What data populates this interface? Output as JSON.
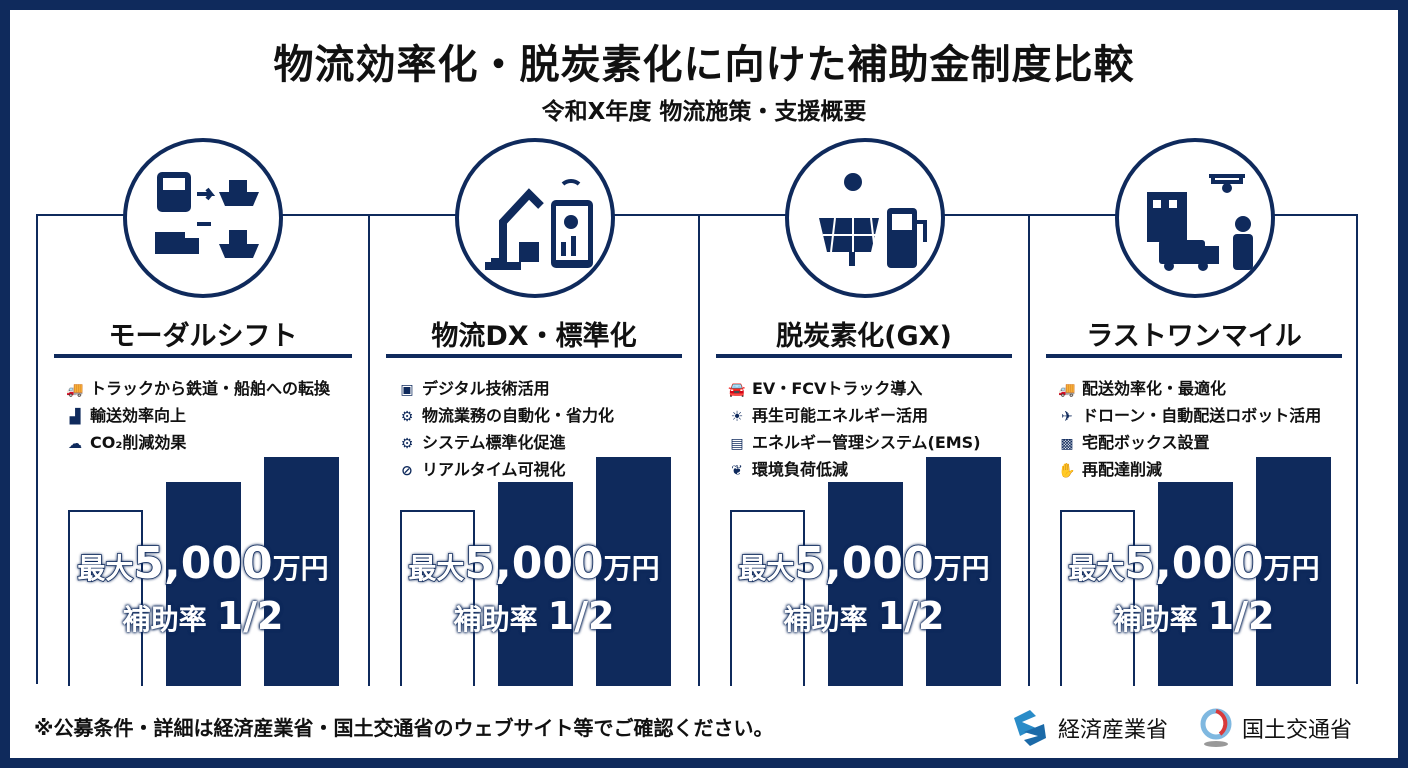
{
  "title": "物流効率化・脱炭素化に向けた補助金制度比較",
  "subtitle": "令和X年度 物流施策・支援概要",
  "accent": "#0f2a5c",
  "panels": [
    {
      "heading": "モーダルシフト",
      "icon": "train-ship-truck-icon",
      "items": [
        {
          "icon": "truck-icon",
          "text": "トラックから鉄道・船舶への転換"
        },
        {
          "icon": "bar-chart-icon",
          "text": "輸送効率向上"
        },
        {
          "icon": "co2-cloud-icon",
          "text": "CO₂削減効果"
        }
      ],
      "amount_prefix": "最大",
      "amount": "5,000",
      "amount_unit": "万円",
      "rate_label": "補助率",
      "rate": "1/2"
    },
    {
      "heading": "物流DX・標準化",
      "icon": "robot-arm-tablet-icon",
      "items": [
        {
          "icon": "chip-icon",
          "text": "デジタル技術活用"
        },
        {
          "icon": "gear-icon",
          "text": "物流業務の自動化・省力化"
        },
        {
          "icon": "gear-icon",
          "text": "システム標準化促進"
        },
        {
          "icon": "compass-icon",
          "text": "リアルタイム可視化"
        }
      ],
      "amount_prefix": "最大",
      "amount": "5,000",
      "amount_unit": "万円",
      "rate_label": "補助率",
      "rate": "1/2"
    },
    {
      "heading": "脱炭素化(GX)",
      "icon": "solar-ev-charger-icon",
      "items": [
        {
          "icon": "car-icon",
          "text": "EV・FCVトラック導入"
        },
        {
          "icon": "sun-icon",
          "text": "再生可能エネルギー活用"
        },
        {
          "icon": "ems-icon",
          "text": "エネルギー管理システム(EMS)"
        },
        {
          "icon": "leaf-icon",
          "text": "環境負荷低減"
        }
      ],
      "amount_prefix": "最大",
      "amount": "5,000",
      "amount_unit": "万円",
      "rate_label": "補助率",
      "rate": "1/2"
    },
    {
      "heading": "ラストワンマイル",
      "icon": "building-van-drone-icon",
      "items": [
        {
          "icon": "truck-icon",
          "text": "配送効率化・最適化"
        },
        {
          "icon": "drone-icon",
          "text": "ドローン・自動配送ロボット活用"
        },
        {
          "icon": "box-icon",
          "text": "宅配ボックス設置"
        },
        {
          "icon": "hand-coin-icon",
          "text": "再配達削減"
        }
      ],
      "amount_prefix": "最大",
      "amount": "5,000",
      "amount_unit": "万円",
      "rate_label": "補助率",
      "rate": "1/2"
    }
  ],
  "footer": {
    "note": "※公募条件・詳細は経済産業省・国土交通省のウェブサイト等でご確認ください。",
    "logo1": "経済産業省",
    "logo2": "国土交通省"
  }
}
